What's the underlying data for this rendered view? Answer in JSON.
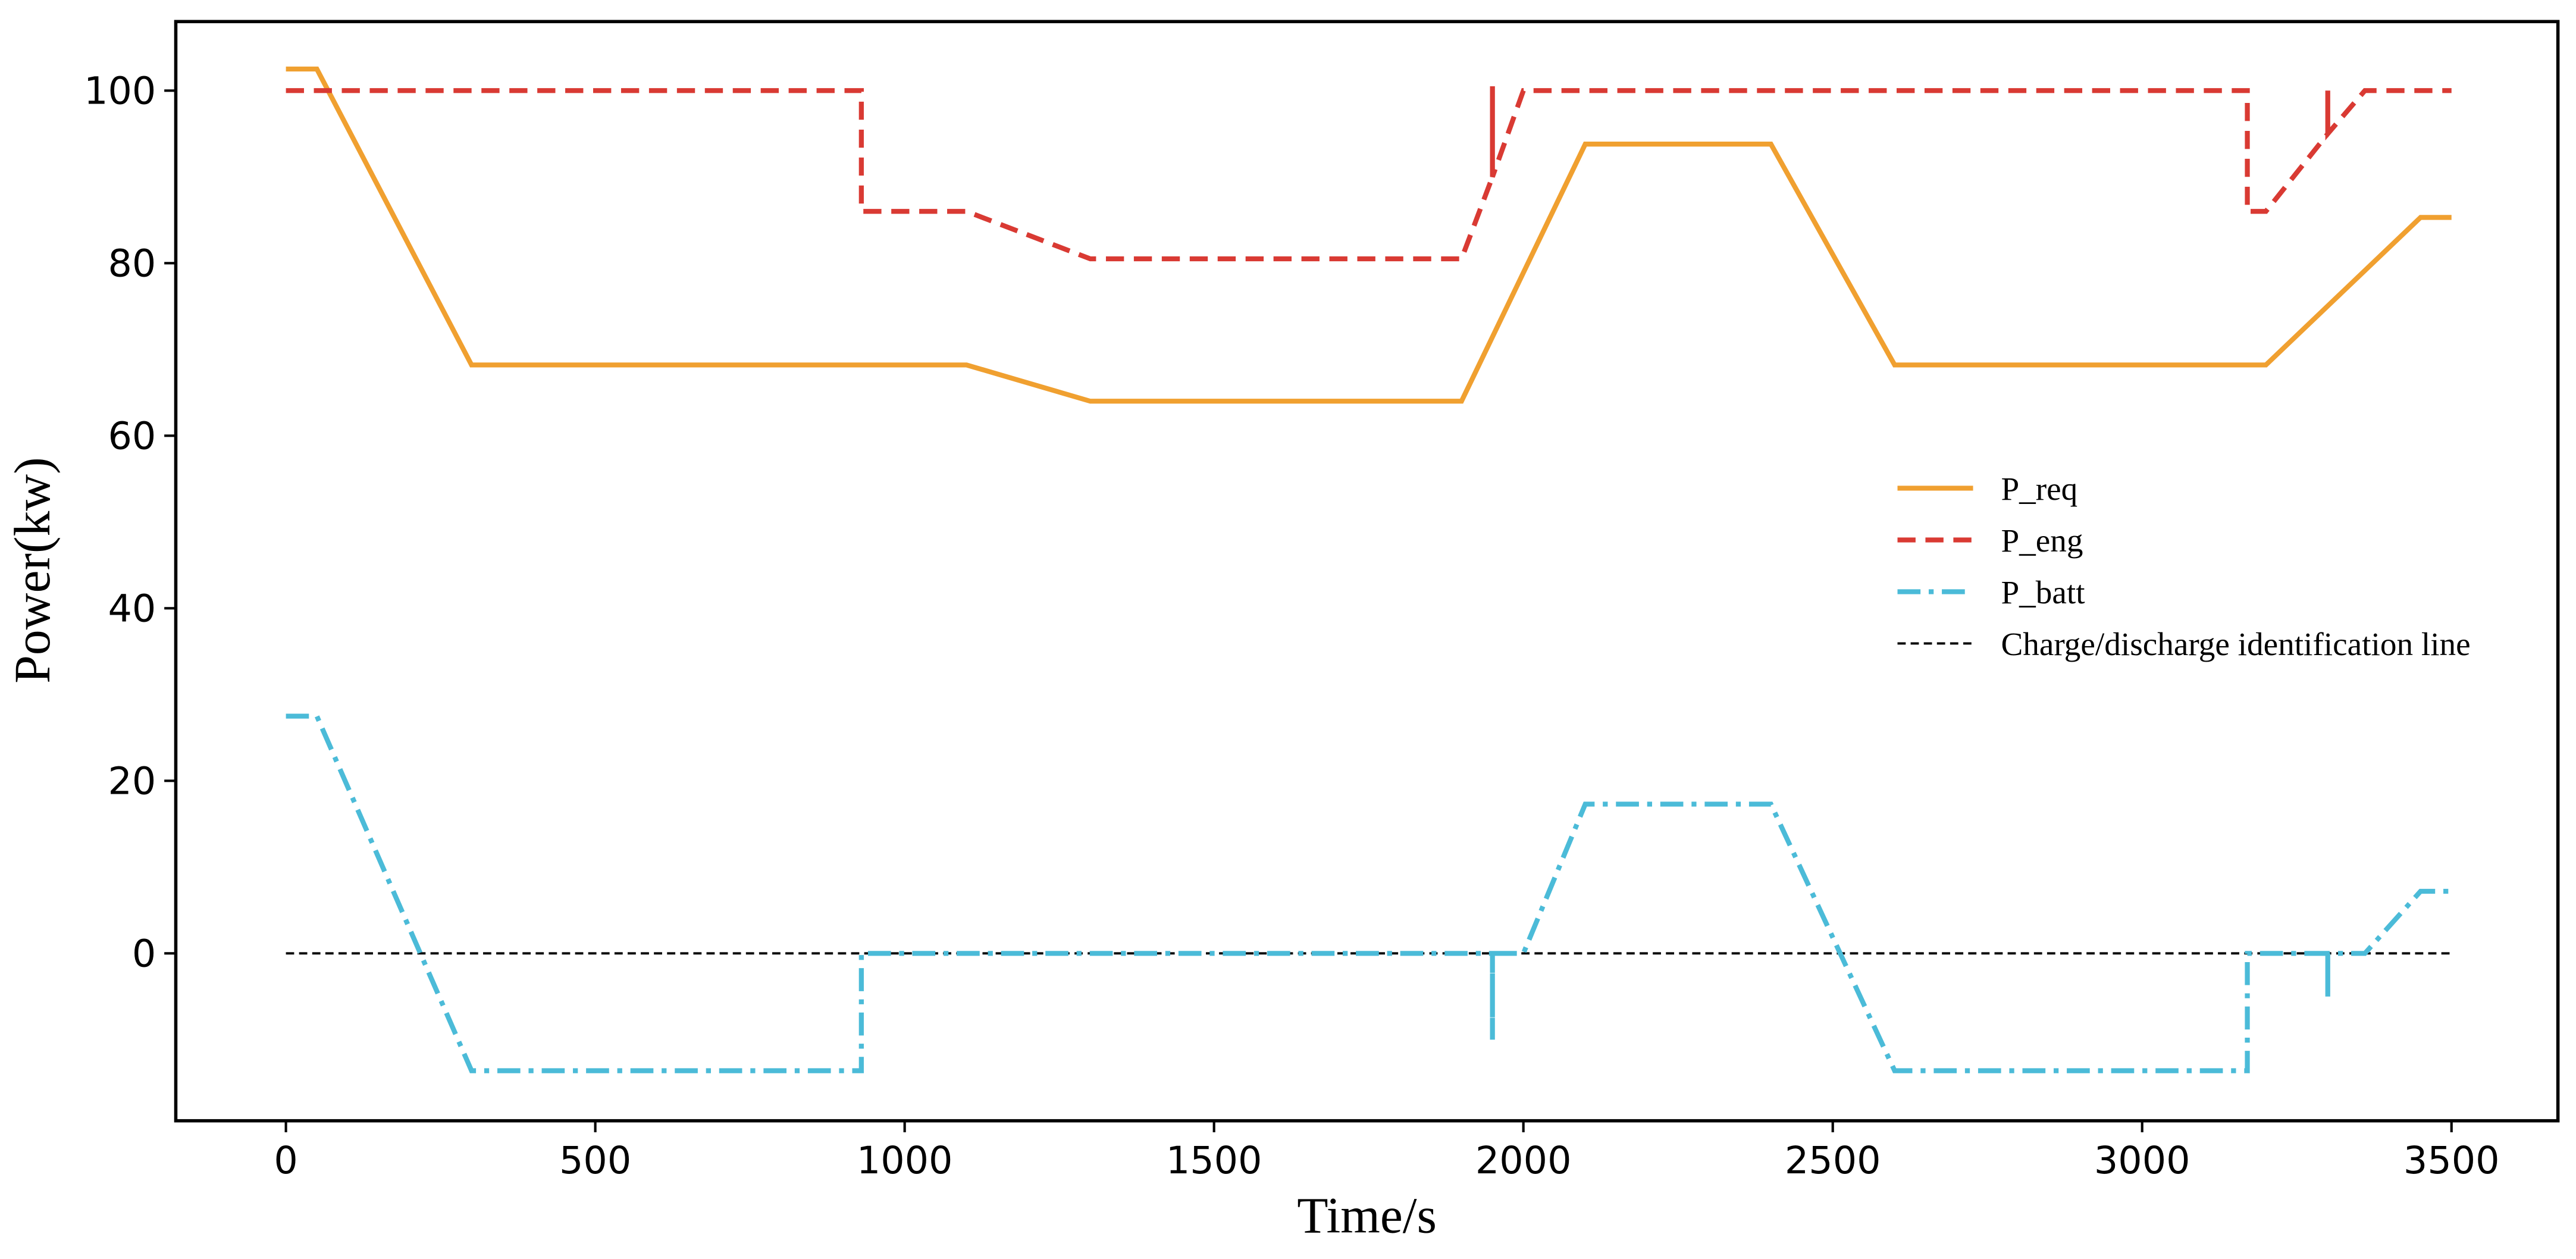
{
  "chart_data": {
    "type": "line",
    "xlabel": "Time/s",
    "ylabel": "Power(kw)",
    "xlim": [
      -178,
      3672
    ],
    "ylim": [
      -19.4,
      108
    ],
    "xticks": [
      0,
      500,
      1000,
      1500,
      2000,
      2500,
      3000,
      3500
    ],
    "yticks": [
      0,
      20,
      40,
      60,
      80,
      100
    ],
    "legend": "center right",
    "series": [
      {
        "name": "P_req",
        "color": "#f0a030",
        "style": "solid",
        "x": [
          0,
          50,
          300,
          1100,
          1300,
          1900,
          2100,
          2400,
          2600,
          3200,
          3450,
          3500
        ],
        "values": [
          102.5,
          102.5,
          68.2,
          68.2,
          64,
          64,
          93.8,
          93.8,
          68.2,
          68.2,
          85.3,
          85.3
        ]
      },
      {
        "name": "P_eng",
        "color": "#d93a33",
        "style": "dashed",
        "x": [
          0,
          930,
          930,
          1100,
          1300,
          1900,
          1950,
          1950,
          1950,
          2000,
          3170,
          3170,
          3200,
          3300,
          3300,
          3300,
          3360,
          3500
        ],
        "values": [
          100,
          100,
          86,
          86,
          80.5,
          80.5,
          90,
          100.5,
          90,
          100,
          100,
          86,
          86,
          95,
          100,
          95,
          100,
          100
        ]
      },
      {
        "name": "P_batt",
        "color": "#4bbbd8",
        "style": "dashdot",
        "x": [
          0,
          50,
          300,
          930,
          930,
          1950,
          1950,
          1950,
          2000,
          2100,
          2400,
          2600,
          3170,
          3170,
          3300,
          3300,
          3300,
          3360,
          3450,
          3500
        ],
        "values": [
          27.5,
          27.5,
          -13.6,
          -13.6,
          0,
          0,
          -10,
          0,
          0,
          17.3,
          17.3,
          -13.6,
          -13.6,
          0,
          0,
          -5,
          0,
          0,
          7.2,
          7.2
        ]
      },
      {
        "name": "Charge/discharge identification line",
        "color": "#000000",
        "style": "thin-dashed",
        "x": [
          0,
          3500
        ],
        "values": [
          0,
          0
        ]
      }
    ]
  }
}
